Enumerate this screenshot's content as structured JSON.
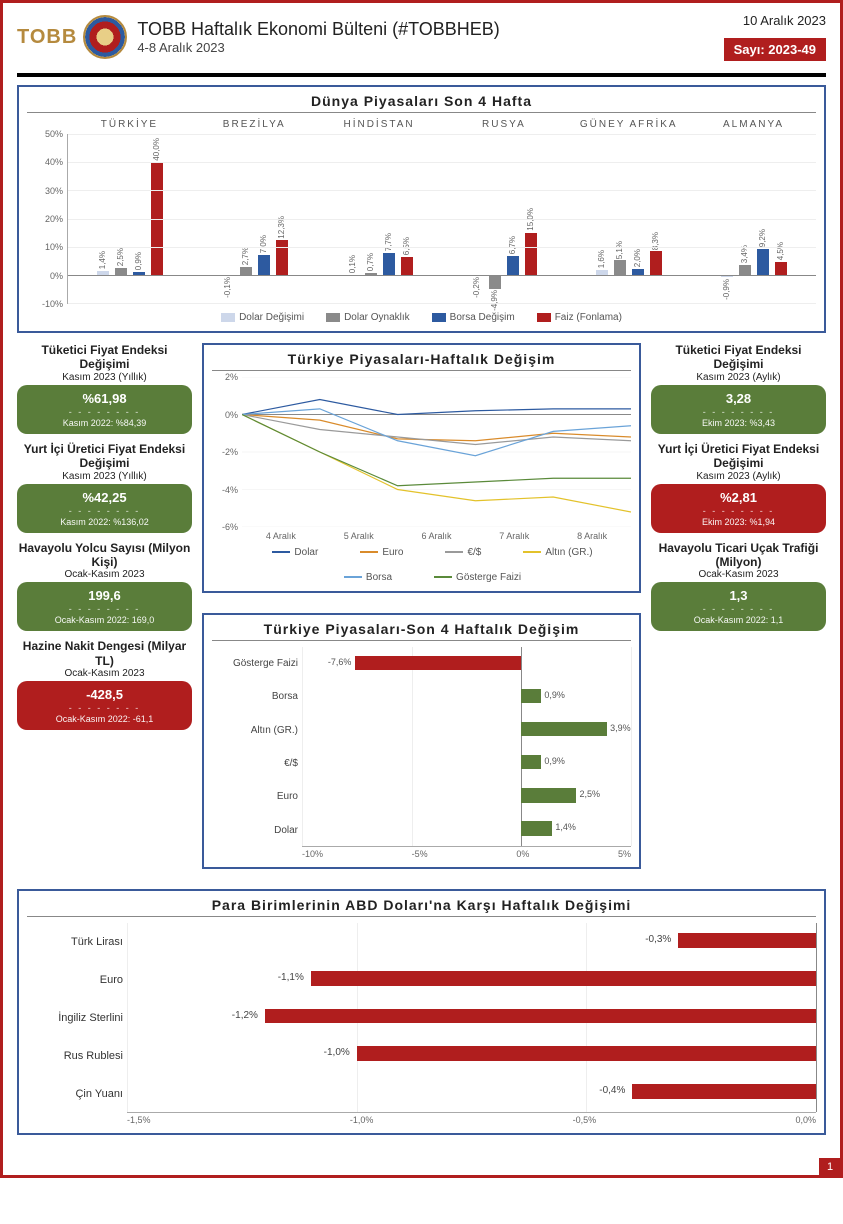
{
  "header": {
    "logo_text": "TOBB",
    "title": "TOBB Haftalık Ekonomi Bülteni (#TOBBHEB)",
    "date_range": "4-8 Aralık 2023",
    "publish_date": "10 Aralık 2023",
    "issue_label": "Sayı: 2023-49"
  },
  "world_markets": {
    "title": "Dünya Piyasaları Son 4 Hafta",
    "countries": [
      "TÜRKİYE",
      "BREZİLYA",
      "HİNDİSTAN",
      "RUSYA",
      "GÜNEY AFRİKA",
      "ALMANYA"
    ],
    "y_ticks": [
      50,
      40,
      30,
      20,
      10,
      0,
      -10
    ],
    "y_min": -10,
    "y_max": 50,
    "series": [
      {
        "name": "Dolar Değişimi",
        "color": "#cdd7ea"
      },
      {
        "name": "Dolar Oynaklık",
        "color": "#8a8a8a"
      },
      {
        "name": "Borsa Değişim",
        "color": "#2d5aa0"
      },
      {
        "name": "Faiz (Fonlama)",
        "color": "#b01e1e"
      }
    ],
    "data": [
      {
        "country": "TÜRKİYE",
        "values": [
          1.4,
          2.5,
          0.9,
          40.0
        ],
        "labels": [
          "1,4%",
          "2,5%",
          "0,9%",
          "40,0%"
        ]
      },
      {
        "country": "BREZİLYA",
        "values": [
          -0.1,
          2.7,
          7.0,
          12.3
        ],
        "labels": [
          "-0,1%",
          "2,7%",
          "7,0%",
          "12,3%"
        ]
      },
      {
        "country": "HİNDİSTAN",
        "values": [
          0.1,
          0.7,
          7.7,
          6.5
        ],
        "labels": [
          "0,1%",
          "0,7%",
          "7,7%",
          "6,5%"
        ]
      },
      {
        "country": "RUSYA",
        "values": [
          -0.2,
          -4.9,
          6.7,
          15.0
        ],
        "labels": [
          "-0,2%",
          "-4,9%",
          "6,7%",
          "15,0%"
        ]
      },
      {
        "country": "GÜNEY AFRİKA",
        "values": [
          1.6,
          5.1,
          2.0,
          8.3
        ],
        "labels": [
          "1,6%",
          "5,1%",
          "2,0%",
          "8,3%"
        ]
      },
      {
        "country": "ALMANYA",
        "values": [
          -0.9,
          3.4,
          9.2,
          4.5
        ],
        "labels": [
          "-0,9%",
          "3,4%",
          "9,2%",
          "4,5%"
        ]
      }
    ],
    "legend": [
      "Dolar Değişimi",
      "Dolar Oynaklık",
      "Borsa Değişim",
      "Faiz (Fonlama)"
    ]
  },
  "kpi_left": [
    {
      "head": "Tüketici Fiyat Endeksi Değişimi",
      "sub": "Kasım 2023 (Yıllık)",
      "value": "%61,98",
      "prev": "Kasım 2022: %84,39",
      "color": "green"
    },
    {
      "head": "Yurt İçi Üretici Fiyat Endeksi Değişimi",
      "sub": "Kasım 2023 (Yıllık)",
      "value": "%42,25",
      "prev": "Kasım 2022: %136,02",
      "color": "green"
    },
    {
      "head": "Havayolu Yolcu Sayısı (Milyon Kişi)",
      "sub": "Ocak-Kasım 2023",
      "value": "199,6",
      "prev": "Ocak-Kasım 2022: 169,0",
      "color": "green"
    },
    {
      "head": "Hazine Nakit Dengesi (Milyar TL)",
      "sub": "Ocak-Kasım 2023",
      "value": "-428,5",
      "prev": "Ocak-Kasım 2022: -61,1",
      "color": "red"
    }
  ],
  "kpi_right": [
    {
      "head": "Tüketici Fiyat Endeksi Değişimi",
      "sub": "Kasım 2023 (Aylık)",
      "value": "3,28",
      "prev": "Ekim 2023: %3,43",
      "color": "green"
    },
    {
      "head": "Yurt İçi Üretici Fiyat Endeksi Değişimi",
      "sub": "Kasım 2023 (Aylık)",
      "value": "%2,81",
      "prev": "Ekim 2023: %1,94",
      "color": "red"
    },
    {
      "head": "Havayolu Ticari Uçak Trafiği (Milyon)",
      "sub": "Ocak-Kasım 2023",
      "value": "1,3",
      "prev": "Ocak-Kasım 2022: 1,1",
      "color": "green"
    }
  ],
  "line_chart": {
    "title": "Türkiye Piyasaları-Haftalık Değişim",
    "y_ticks": [
      2,
      0,
      -2,
      -4,
      -6
    ],
    "y_min": -6,
    "y_max": 2,
    "x_labels": [
      "4 Aralık",
      "5 Aralık",
      "6 Aralık",
      "7 Aralık",
      "8 Aralık"
    ],
    "series": [
      {
        "name": "Dolar",
        "color": "#2d5aa0",
        "values": [
          0.0,
          0.8,
          0.0,
          0.2,
          0.3,
          0.3
        ]
      },
      {
        "name": "Euro",
        "color": "#d98b2b",
        "values": [
          0.0,
          -0.3,
          -1.3,
          -1.4,
          -1.0,
          -1.2
        ]
      },
      {
        "name": "€/$",
        "color": "#9a9a9a",
        "values": [
          0.0,
          -0.8,
          -1.2,
          -1.6,
          -1.2,
          -1.4
        ]
      },
      {
        "name": "Altın (GR.)",
        "color": "#e3c22b",
        "values": [
          0.0,
          -2.0,
          -4.0,
          -4.6,
          -4.4,
          -5.2
        ]
      },
      {
        "name": "Borsa",
        "color": "#6aa3d8",
        "values": [
          0.0,
          0.3,
          -1.4,
          -2.2,
          -0.9,
          -0.6
        ]
      },
      {
        "name": "Gösterge Faizi",
        "color": "#5a8a3a",
        "values": [
          0.0,
          -2.0,
          -3.8,
          -3.6,
          -3.4,
          -3.4
        ]
      }
    ]
  },
  "hbar_4wk": {
    "title": "Türkiye Piyasaları-Son 4 Haftalık Değişim",
    "x_ticks": [
      -10,
      -5,
      0,
      5
    ],
    "x_min": -10,
    "x_max": 5,
    "rows": [
      {
        "label": "Gösterge Faizi",
        "value": -7.6,
        "text": "-7,6%",
        "color": "#b01e1e"
      },
      {
        "label": "Borsa",
        "value": 0.9,
        "text": "0,9%",
        "color": "#5a7d3a"
      },
      {
        "label": "Altın (GR.)",
        "value": 3.9,
        "text": "3,9%",
        "color": "#5a7d3a"
      },
      {
        "label": "€/$",
        "value": 0.9,
        "text": "0,9%",
        "color": "#5a7d3a"
      },
      {
        "label": "Euro",
        "value": 2.5,
        "text": "2,5%",
        "color": "#5a7d3a"
      },
      {
        "label": "Dolar",
        "value": 1.4,
        "text": "1,4%",
        "color": "#5a7d3a"
      }
    ]
  },
  "currencies": {
    "title": "Para Birimlerinin ABD Doları'na Karşı Haftalık Değişimi",
    "x_ticks": [
      -1.5,
      -1.0,
      -0.5,
      0.0
    ],
    "x_min": -1.5,
    "x_max": 0.0,
    "rows": [
      {
        "label": "Türk Lirası",
        "value": -0.3,
        "text": "-0,3%"
      },
      {
        "label": "Euro",
        "value": -1.1,
        "text": "-1,1%"
      },
      {
        "label": "İngiliz Sterlini",
        "value": -1.2,
        "text": "-1,2%"
      },
      {
        "label": "Rus Rublesi",
        "value": -1.0,
        "text": "-1,0%"
      },
      {
        "label": "Çin Yuanı",
        "value": -0.4,
        "text": "-0,4%"
      }
    ],
    "bar_color": "#b01e1e"
  },
  "page_number": "1"
}
